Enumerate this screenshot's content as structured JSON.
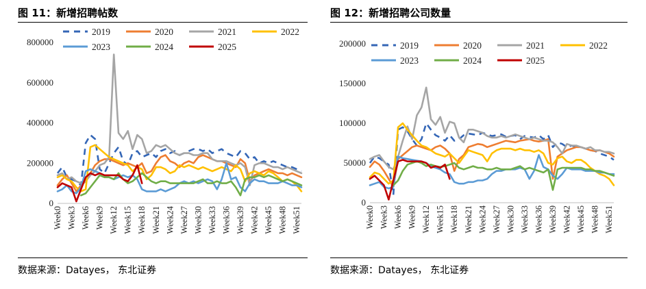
{
  "panels": [
    {
      "title": "图 11：新增招聘帖数",
      "source": "数据来源：Datayes， 东北证券"
    },
    {
      "title": "图 12：新增招聘公司数量",
      "source": "数据来源：Datayes， 东北证券"
    }
  ],
  "colors": {
    "2019": "#3466b6",
    "2020": "#ee7d31",
    "2021": "#a5a5a5",
    "2022": "#ffc000",
    "2023": "#5b9bd5",
    "2024": "#70ad47",
    "2025": "#c00000"
  },
  "chart_data": [
    {
      "type": "line",
      "title": "",
      "xlabel": "",
      "ylabel": "",
      "ylim": [
        0,
        800000
      ],
      "yticks": [
        "0",
        "200000",
        "400000",
        "600000",
        "800000"
      ],
      "x": [
        "Week0",
        "Week1",
        "Week2",
        "Week3",
        "Week4",
        "Week5",
        "Week6",
        "Week7",
        "Week8",
        "Week9",
        "Week10",
        "Week11",
        "Week12",
        "Week13",
        "Week14",
        "Week15",
        "Week16",
        "Week17",
        "Week18",
        "Week19",
        "Week20",
        "Week21",
        "Week22",
        "Week23",
        "Week24",
        "Week25",
        "Week26",
        "Week27",
        "Week28",
        "Week29",
        "Week30",
        "Week31",
        "Week32",
        "Week33",
        "Week34",
        "Week35",
        "Week36",
        "Week37",
        "Week38",
        "Week39",
        "Week40",
        "Week41",
        "Week42",
        "Week43",
        "Week44",
        "Week45",
        "Week46",
        "Week47",
        "Week48",
        "Week49",
        "Week50",
        "Week51",
        "Week52"
      ],
      "xtick_labels": [
        "Week0",
        "Week3",
        "Week6",
        "Week9",
        "Week12",
        "Week15",
        "Week18",
        "Week21",
        "Week24",
        "Week27",
        "Week30",
        "Week33",
        "Week36",
        "Week39",
        "Week42",
        "Week45",
        "Week48",
        "Week51"
      ],
      "legend": "top",
      "grid": false,
      "series": [
        {
          "name": "2019",
          "dashed": true,
          "values": [
            150000,
            180000,
            130000,
            120000,
            110000,
            90000,
            300000,
            340000,
            320000,
            170000,
            150000,
            200000,
            250000,
            280000,
            210000,
            190000,
            250000,
            260000,
            230000,
            240000,
            250000,
            230000,
            260000,
            270000,
            250000,
            260000,
            240000,
            250000,
            260000,
            270000,
            270000,
            260000,
            270000,
            250000,
            260000,
            270000,
            250000,
            240000,
            230000,
            260000,
            250000,
            220000,
            230000,
            200000,
            210000,
            200000,
            210000,
            200000,
            190000,
            180000,
            180000,
            170000,
            160000
          ]
        },
        {
          "name": "2020",
          "values": [
            90000,
            120000,
            140000,
            100000,
            60000,
            90000,
            110000,
            150000,
            190000,
            210000,
            220000,
            220000,
            210000,
            200000,
            190000,
            200000,
            190000,
            180000,
            200000,
            150000,
            160000,
            200000,
            230000,
            240000,
            210000,
            200000,
            180000,
            200000,
            210000,
            200000,
            230000,
            240000,
            230000,
            220000,
            210000,
            210000,
            200000,
            190000,
            180000,
            220000,
            200000,
            110000,
            140000,
            150000,
            160000,
            170000,
            160000,
            150000,
            150000,
            140000,
            150000,
            140000,
            130000
          ]
        },
        {
          "name": "2021",
          "values": [
            140000,
            150000,
            120000,
            130000,
            110000,
            100000,
            110000,
            140000,
            160000,
            190000,
            200000,
            230000,
            740000,
            350000,
            320000,
            360000,
            270000,
            340000,
            320000,
            250000,
            260000,
            290000,
            280000,
            290000,
            270000,
            250000,
            240000,
            250000,
            250000,
            240000,
            240000,
            250000,
            250000,
            220000,
            210000,
            210000,
            210000,
            200000,
            190000,
            200000,
            180000,
            90000,
            190000,
            200000,
            200000,
            190000,
            180000,
            180000,
            170000,
            180000,
            170000,
            160000,
            150000
          ]
        },
        {
          "name": "2022",
          "values": [
            130000,
            140000,
            120000,
            110000,
            80000,
            60000,
            70000,
            280000,
            290000,
            270000,
            250000,
            230000,
            220000,
            210000,
            200000,
            190000,
            160000,
            180000,
            170000,
            120000,
            140000,
            180000,
            180000,
            170000,
            150000,
            160000,
            190000,
            180000,
            190000,
            180000,
            170000,
            180000,
            170000,
            160000,
            170000,
            180000,
            170000,
            160000,
            190000,
            170000,
            110000,
            150000,
            160000,
            150000,
            140000,
            160000,
            150000,
            130000,
            110000,
            120000,
            110000,
            90000,
            60000
          ]
        },
        {
          "name": "2023",
          "values": [
            60000,
            70000,
            90000,
            60000,
            50000,
            80000,
            160000,
            170000,
            160000,
            150000,
            140000,
            130000,
            120000,
            130000,
            140000,
            130000,
            140000,
            120000,
            70000,
            60000,
            60000,
            60000,
            70000,
            60000,
            70000,
            80000,
            100000,
            110000,
            100000,
            110000,
            100000,
            110000,
            120000,
            110000,
            70000,
            120000,
            200000,
            120000,
            130000,
            80000,
            60000,
            100000,
            120000,
            110000,
            110000,
            100000,
            100000,
            100000,
            110000,
            100000,
            90000,
            90000,
            80000
          ]
        },
        {
          "name": "2024",
          "values": [
            null,
            null,
            null,
            null,
            null,
            40000,
            50000,
            80000,
            110000,
            140000,
            130000,
            130000,
            120000,
            150000,
            120000,
            100000,
            110000,
            130000,
            150000,
            130000,
            110000,
            100000,
            110000,
            110000,
            100000,
            100000,
            100000,
            100000,
            100000,
            100000,
            110000,
            120000,
            100000,
            100000,
            110000,
            100000,
            100000,
            110000,
            80000,
            40000,
            120000,
            130000,
            130000,
            140000,
            130000,
            140000,
            130000,
            120000,
            110000,
            120000,
            110000,
            100000,
            90000
          ]
        },
        {
          "name": "2025",
          "values": [
            80000,
            100000,
            90000,
            80000,
            10000,
            70000,
            130000,
            150000,
            140000,
            150000,
            140000,
            140000,
            140000,
            140000,
            120000,
            110000,
            140000,
            190000,
            100000,
            null,
            null,
            null,
            null,
            null,
            null,
            null,
            null,
            null,
            null,
            null,
            null,
            null,
            null,
            null,
            null,
            null,
            null,
            null,
            null,
            null,
            null,
            null,
            null,
            null,
            null,
            null,
            null,
            null,
            null,
            null,
            null,
            null,
            null
          ]
        }
      ]
    },
    {
      "type": "line",
      "title": "",
      "xlabel": "",
      "ylabel": "",
      "ylim": [
        0,
        200000
      ],
      "yticks": [
        "0",
        "50000",
        "100000",
        "150000",
        "200000"
      ],
      "x": [
        "Week0",
        "Week1",
        "Week2",
        "Week3",
        "Week4",
        "Week5",
        "Week6",
        "Week7",
        "Week8",
        "Week9",
        "Week10",
        "Week11",
        "Week12",
        "Week13",
        "Week14",
        "Week15",
        "Week16",
        "Week17",
        "Week18",
        "Week19",
        "Week20",
        "Week21",
        "Week22",
        "Week23",
        "Week24",
        "Week25",
        "Week26",
        "Week27",
        "Week28",
        "Week29",
        "Week30",
        "Week31",
        "Week32",
        "Week33",
        "Week34",
        "Week35",
        "Week36",
        "Week37",
        "Week38",
        "Week39",
        "Week40",
        "Week41",
        "Week42",
        "Week43",
        "Week44",
        "Week45",
        "Week46",
        "Week47",
        "Week48",
        "Week49",
        "Week50",
        "Week51",
        "Week52"
      ],
      "xtick_labels": [
        "Week0",
        "Week3",
        "Week6",
        "Week9",
        "Week12",
        "Week15",
        "Week18",
        "Week21",
        "Week24",
        "Week27",
        "Week30",
        "Week33",
        "Week36",
        "Week39",
        "Week42",
        "Week45",
        "Week48",
        "Week51"
      ],
      "legend": "top",
      "grid": false,
      "series": [
        {
          "name": "2019",
          "dashed": true,
          "values": [
            50000,
            58000,
            56000,
            52000,
            48000,
            10000,
            92000,
            95000,
            90000,
            80000,
            72000,
            80000,
            100000,
            92000,
            85000,
            82000,
            78000,
            85000,
            78000,
            80000,
            85000,
            87000,
            86000,
            85000,
            88000,
            86000,
            84000,
            85000,
            86000,
            83000,
            84000,
            85000,
            80000,
            84000,
            83000,
            82000,
            85000,
            80000,
            85000,
            70000,
            76000,
            74000,
            70000,
            72000,
            70000,
            70000,
            68000,
            66000,
            65000,
            62000,
            60000,
            58000,
            54000
          ]
        },
        {
          "name": "2020",
          "values": [
            45000,
            52000,
            48000,
            40000,
            30000,
            20000,
            55000,
            60000,
            65000,
            70000,
            72000,
            70000,
            68000,
            66000,
            70000,
            72000,
            68000,
            62000,
            40000,
            55000,
            60000,
            70000,
            72000,
            74000,
            73000,
            70000,
            72000,
            74000,
            76000,
            78000,
            77000,
            76000,
            78000,
            79000,
            80000,
            78000,
            77000,
            78000,
            80000,
            30000,
            58000,
            62000,
            66000,
            68000,
            70000,
            70000,
            68000,
            66000,
            65000,
            66000,
            64000,
            62000,
            58000
          ]
        },
        {
          "name": "2021",
          "values": [
            55000,
            58000,
            60000,
            52000,
            45000,
            42000,
            58000,
            78000,
            96000,
            80000,
            110000,
            120000,
            145000,
            105000,
            98000,
            108000,
            88000,
            102000,
            100000,
            82000,
            76000,
            92000,
            92000,
            90000,
            88000,
            84000,
            82000,
            82000,
            84000,
            82000,
            84000,
            86000,
            84000,
            82000,
            80000,
            82000,
            80000,
            78000,
            78000,
            76000,
            70000,
            62000,
            74000,
            72000,
            72000,
            70000,
            68000,
            70000,
            66000,
            66000,
            64000,
            64000,
            62000
          ]
        },
        {
          "name": "2022",
          "values": [
            32000,
            38000,
            36000,
            30000,
            24000,
            28000,
            95000,
            100000,
            92000,
            85000,
            78000,
            72000,
            70000,
            66000,
            62000,
            60000,
            58000,
            62000,
            56000,
            50000,
            58000,
            66000,
            64000,
            62000,
            60000,
            52000,
            62000,
            66000,
            68000,
            68000,
            68000,
            66000,
            68000,
            66000,
            66000,
            64000,
            66000,
            62000,
            50000,
            48000,
            56000,
            58000,
            52000,
            50000,
            54000,
            54000,
            50000,
            44000,
            40000,
            36000,
            34000,
            30000,
            22000
          ]
        },
        {
          "name": "2023",
          "values": [
            22000,
            24000,
            26000,
            20000,
            18000,
            20000,
            58000,
            56000,
            55000,
            54000,
            53000,
            52000,
            50000,
            46000,
            44000,
            42000,
            38000,
            36000,
            26000,
            24000,
            24000,
            26000,
            26000,
            28000,
            28000,
            30000,
            36000,
            40000,
            40000,
            42000,
            42000,
            42000,
            44000,
            42000,
            30000,
            40000,
            60000,
            45000,
            42000,
            34000,
            30000,
            36000,
            44000,
            42000,
            42000,
            42000,
            40000,
            40000,
            40000,
            38000,
            38000,
            36000,
            36000
          ]
        },
        {
          "name": "2024",
          "values": [
            null,
            null,
            null,
            null,
            null,
            22000,
            28000,
            40000,
            48000,
            50000,
            52000,
            50000,
            46000,
            48000,
            46000,
            45000,
            46000,
            48000,
            50000,
            44000,
            42000,
            44000,
            46000,
            44000,
            44000,
            42000,
            42000,
            44000,
            42000,
            42000,
            42000,
            44000,
            46000,
            42000,
            44000,
            42000,
            40000,
            38000,
            42000,
            16000,
            42000,
            44000,
            44000,
            44000,
            44000,
            44000,
            42000,
            42000,
            40000,
            40000,
            38000,
            36000,
            34000
          ]
        },
        {
          "name": "2025",
          "values": [
            30000,
            34000,
            28000,
            22000,
            4000,
            28000,
            52000,
            54000,
            52000,
            52000,
            52000,
            52000,
            50000,
            44000,
            46000,
            44000,
            48000,
            30000,
            null,
            null,
            null,
            null,
            null,
            null,
            null,
            null,
            null,
            null,
            null,
            null,
            null,
            null,
            null,
            null,
            null,
            null,
            null,
            null,
            null,
            null,
            null,
            null,
            null,
            null,
            null,
            null,
            null,
            null,
            null,
            null,
            null,
            null,
            null
          ]
        }
      ]
    }
  ]
}
